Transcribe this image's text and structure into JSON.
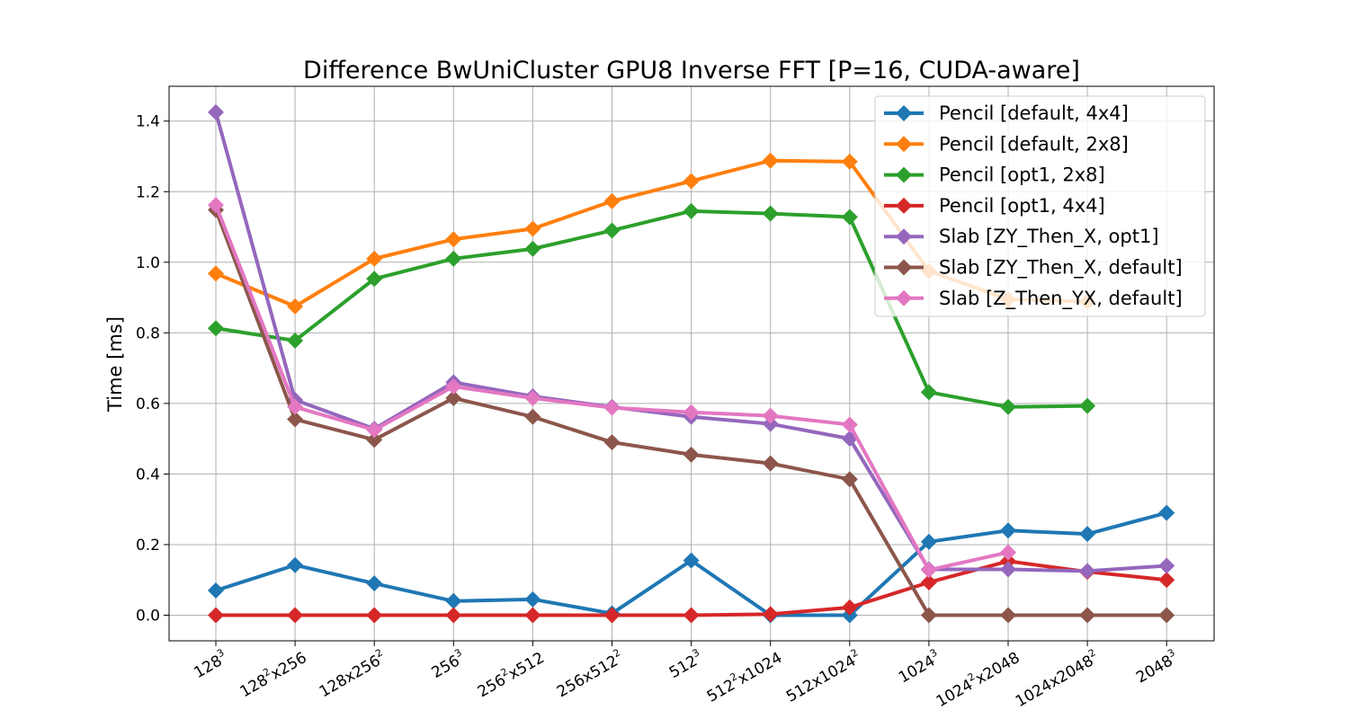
{
  "chart_data": {
    "type": "line",
    "title": "Difference BwUniCluster GPU8 Inverse FFT [P=16, CUDA-aware]",
    "xlabel": "",
    "ylabel": "Time [ms]",
    "ylim": [
      -0.07,
      1.5
    ],
    "y_ticks": [
      0.0,
      0.2,
      0.4,
      0.6,
      0.8,
      1.0,
      1.2,
      1.4
    ],
    "y_tick_labels": [
      "0.0",
      "0.2",
      "0.4",
      "0.6",
      "0.8",
      "1.0",
      "1.2",
      "1.4"
    ],
    "grid": true,
    "legend_position": "upper right",
    "categories": [
      {
        "base": "128",
        "sup": "3",
        "tail": "",
        "tsup": ""
      },
      {
        "base": "128",
        "sup": "2",
        "tail": "x256",
        "tsup": ""
      },
      {
        "base": "128x256",
        "sup": "2",
        "tail": "",
        "tsup": ""
      },
      {
        "base": "256",
        "sup": "3",
        "tail": "",
        "tsup": ""
      },
      {
        "base": "256",
        "sup": "2",
        "tail": "x512",
        "tsup": ""
      },
      {
        "base": "256x512",
        "sup": "2",
        "tail": "",
        "tsup": ""
      },
      {
        "base": "512",
        "sup": "3",
        "tail": "",
        "tsup": ""
      },
      {
        "base": "512",
        "sup": "2",
        "tail": "x1024",
        "tsup": ""
      },
      {
        "base": "512x1024",
        "sup": "2",
        "tail": "",
        "tsup": ""
      },
      {
        "base": "1024",
        "sup": "3",
        "tail": "",
        "tsup": ""
      },
      {
        "base": "1024",
        "sup": "2",
        "tail": "x2048",
        "tsup": ""
      },
      {
        "base": "1024x2048",
        "sup": "2",
        "tail": "",
        "tsup": ""
      },
      {
        "base": "2048",
        "sup": "3",
        "tail": "",
        "tsup": ""
      }
    ],
    "series": [
      {
        "name": "Pencil [default, 4x4]",
        "color": "#1f77b4",
        "values": [
          0.07,
          0.142,
          0.09,
          0.04,
          0.045,
          0.005,
          0.155,
          0.0,
          0.0,
          0.208,
          0.24,
          0.23,
          0.29
        ]
      },
      {
        "name": "Pencil [default, 2x8]",
        "color": "#ff7f0e",
        "values": [
          0.968,
          0.875,
          1.01,
          1.065,
          1.095,
          1.173,
          1.23,
          1.288,
          1.285,
          0.975,
          0.895,
          0.888,
          null
        ]
      },
      {
        "name": "Pencil [opt1, 2x8]",
        "color": "#2ca02c",
        "values": [
          0.813,
          0.778,
          0.953,
          1.01,
          1.038,
          1.09,
          1.145,
          1.138,
          1.128,
          0.632,
          0.59,
          0.593,
          null
        ]
      },
      {
        "name": "Pencil [opt1, 4x4]",
        "color": "#d62728",
        "values": [
          0.0,
          0.0,
          0.0,
          0.0,
          0.0,
          0.0,
          0.0,
          0.003,
          0.022,
          0.093,
          0.153,
          0.123,
          0.1
        ]
      },
      {
        "name": "Slab [ZY_Then_X, opt1]",
        "color": "#9467bd",
        "values": [
          1.425,
          0.61,
          0.528,
          0.66,
          0.62,
          0.59,
          0.562,
          0.542,
          0.5,
          0.13,
          0.13,
          0.125,
          0.14
        ]
      },
      {
        "name": "Slab [ZY_Then_X, default]",
        "color": "#8c564b",
        "values": [
          1.148,
          0.555,
          0.497,
          0.615,
          0.562,
          0.49,
          0.455,
          0.43,
          0.385,
          0.0,
          0.0,
          0.0,
          0.0
        ]
      },
      {
        "name": "Slab [Z_Then_YX, default]",
        "color": "#e377c2",
        "values": [
          1.162,
          0.59,
          0.525,
          0.648,
          0.615,
          0.588,
          0.575,
          0.565,
          0.54,
          0.128,
          0.178,
          null,
          null
        ]
      }
    ]
  }
}
